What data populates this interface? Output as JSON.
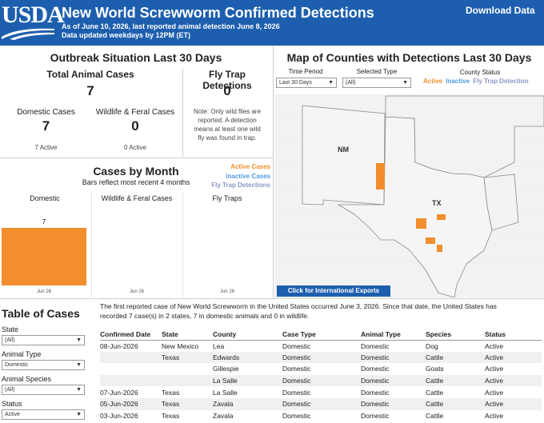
{
  "header": {
    "logo_text": "USDA",
    "title": "New World Screwworm Confirmed Detections",
    "subtitle_line1": "As of June 10, 2026, last reported animal detection June 8, 2026",
    "subtitle_line2": "Data updated weekdays by 12PM (ET)",
    "download_label": "Download Data",
    "color": "#1d5fae"
  },
  "outbreak": {
    "title": "Outbreak Situation Last 30 Days",
    "total_label": "Total Animal Cases",
    "total_value": "7",
    "trap_label": "Fly Trap Detections",
    "trap_value": "0",
    "domestic_label": "Domestic Cases",
    "domestic_value": "7",
    "domestic_active": "7 Active",
    "wildlife_label": "Wildlife & Feral Cases",
    "wildlife_value": "0",
    "wildlife_active": "0 Active",
    "trap_note": [
      "Note: Only wild flies are",
      "reported. A detection",
      "means at least one wild",
      "fly was found in trap."
    ]
  },
  "cases_by_month": {
    "title": "Cases by Month",
    "subtitle": "Bars reflect most recent 4 months",
    "legend": [
      "Active Cases",
      "Inactive Cases",
      "Fly Trap Detections"
    ],
    "colors": {
      "active": "#f28e2b",
      "inactive": "#4e9be0",
      "trap": "#8c96c8"
    }
  },
  "chart_data": [
    {
      "type": "bar",
      "title": "Domestic",
      "categories": [
        "Jun 26"
      ],
      "values": [
        7
      ],
      "series_name": "Active Cases",
      "value_label": "7"
    },
    {
      "type": "bar",
      "title": "Wildlife & Feral Cases",
      "categories": [
        "Jun 26"
      ],
      "values": [
        0
      ]
    },
    {
      "type": "bar",
      "title": "Fly Traps",
      "categories": [
        "Jun 26"
      ],
      "values": [
        0
      ]
    }
  ],
  "map": {
    "title": "Map of Counties with Detections Last 30 Days",
    "time_period_label": "Time Period",
    "time_period_value": "Last 30 Days",
    "selected_type_label": "Selected Type",
    "selected_type_value": "(All)",
    "county_status_label": "County Status",
    "status_legend": [
      "Active",
      "Inactive",
      "Fly Trap Detection"
    ],
    "state_labels": [
      "NM",
      "TX"
    ],
    "intl_button": "Click for International Exports"
  },
  "table": {
    "title": "Table of Cases",
    "intro": [
      "The first reported case of New World Screwworm in the United States occurred June 3, 2026. Since that date, the United States has",
      "recorded 7 case(s) in 2 states, 7 in domestic animals and 0 in wildlife."
    ],
    "filters": [
      {
        "label": "State",
        "value": "(All)"
      },
      {
        "label": "Animal Type",
        "value": "Domestic"
      },
      {
        "label": "Animal Species",
        "value": "(All)"
      },
      {
        "label": "Status",
        "value": "Active"
      }
    ],
    "columns": [
      "Confirmed Date",
      "State",
      "County",
      "Case Type",
      "Animal Type",
      "Species",
      "Status"
    ],
    "rows": [
      [
        "08-Jun-2026",
        "New Mexico",
        "Lea",
        "Domestic",
        "Domestic",
        "Dog",
        "Active"
      ],
      [
        "",
        "Texas",
        "Edwards",
        "Domestic",
        "Domestic",
        "Cattle",
        "Active"
      ],
      [
        "",
        "",
        "Gillespie",
        "Domestic",
        "Domestic",
        "Goats",
        "Active"
      ],
      [
        "",
        "",
        "La Salle",
        "Domestic",
        "Domestic",
        "Cattle",
        "Active"
      ],
      [
        "07-Jun-2026",
        "Texas",
        "La Salle",
        "Domestic",
        "Domestic",
        "Cattle",
        "Active"
      ],
      [
        "05-Jun-2026",
        "Texas",
        "Zavala",
        "Domestic",
        "Domestic",
        "Cattle",
        "Active"
      ],
      [
        "03-Jun-2026",
        "Texas",
        "Zavala",
        "Domestic",
        "Domestic",
        "Cattle",
        "Active"
      ]
    ]
  }
}
